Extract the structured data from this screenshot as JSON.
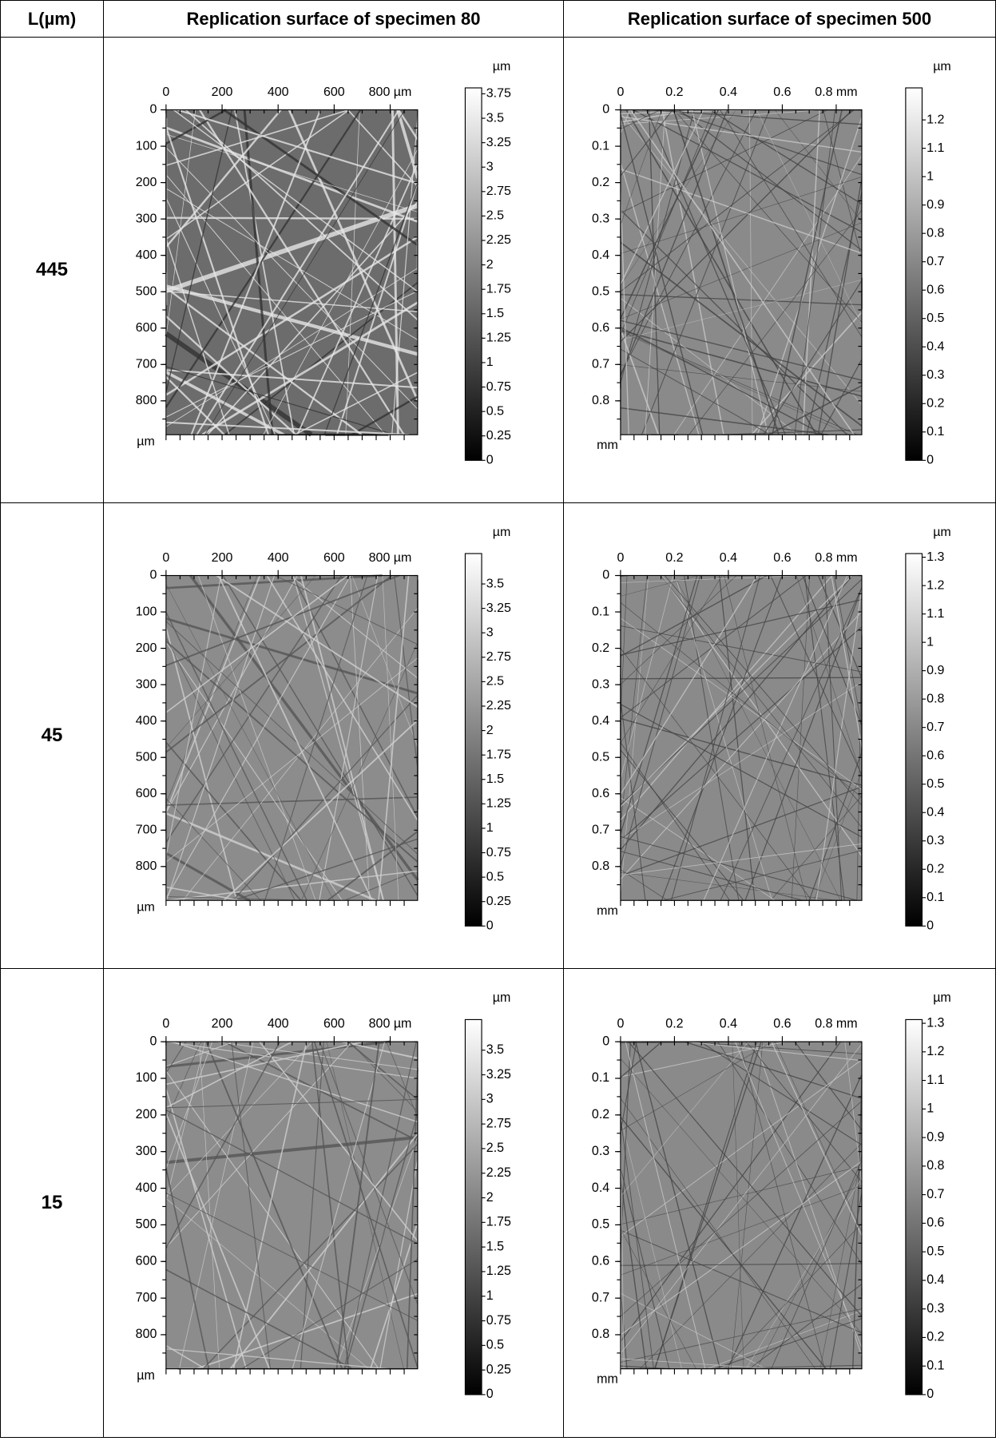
{
  "header": [
    "L(µm)",
    "Replication surface of specimen 80",
    "Replication surface of specimen 500"
  ],
  "rows": [
    {
      "label": "445",
      "panels": [
        {
          "x_ticks": [
            "0",
            "200",
            "400",
            "600",
            "800 µm"
          ],
          "y_ticks": [
            "0",
            "100",
            "200",
            "300",
            "400",
            "500",
            "600",
            "700",
            "800"
          ],
          "axis_unit": "µm",
          "colorbar_unit": "µm",
          "colorbar_ticks": [
            "3.75",
            "3.5",
            "3.25",
            "3",
            "2.75",
            "2.5",
            "2.25",
            "2",
            "1.75",
            "1.5",
            "1.25",
            "1",
            "0.75",
            "0.5",
            "0.25",
            "0"
          ]
        },
        {
          "x_ticks": [
            "0",
            "0.2",
            "0.4",
            "0.6",
            "0.8 mm"
          ],
          "y_ticks": [
            "0",
            "0.1",
            "0.2",
            "0.3",
            "0.4",
            "0.5",
            "0.6",
            "0.7",
            "0.8"
          ],
          "axis_unit": "mm",
          "colorbar_unit": "µm",
          "colorbar_ticks": [
            "1.2",
            "1.1",
            "1",
            "0.9",
            "0.8",
            "0.7",
            "0.6",
            "0.5",
            "0.4",
            "0.3",
            "0.2",
            "0.1",
            "0"
          ]
        }
      ]
    },
    {
      "label": "45",
      "panels": [
        {
          "x_ticks": [
            "0",
            "200",
            "400",
            "600",
            "800 µm"
          ],
          "y_ticks": [
            "0",
            "100",
            "200",
            "300",
            "400",
            "500",
            "600",
            "700",
            "800"
          ],
          "axis_unit": "µm",
          "colorbar_unit": "µm",
          "colorbar_ticks": [
            "3.5",
            "3.25",
            "3",
            "2.75",
            "2.5",
            "2.25",
            "2",
            "1.75",
            "1.5",
            "1.25",
            "1",
            "0.75",
            "0.5",
            "0.25",
            "0"
          ]
        },
        {
          "x_ticks": [
            "0",
            "0.2",
            "0.4",
            "0.6",
            "0.8 mm"
          ],
          "y_ticks": [
            "0",
            "0.1",
            "0.2",
            "0.3",
            "0.4",
            "0.5",
            "0.6",
            "0.7",
            "0.8"
          ],
          "axis_unit": "mm",
          "colorbar_unit": "µm",
          "colorbar_ticks": [
            "1.3",
            "1.2",
            "1.1",
            "1",
            "0.9",
            "0.8",
            "0.7",
            "0.6",
            "0.5",
            "0.4",
            "0.3",
            "0.2",
            "0.1",
            "0"
          ]
        }
      ]
    },
    {
      "label": "15",
      "panels": [
        {
          "x_ticks": [
            "0",
            "200",
            "400",
            "600",
            "800 µm"
          ],
          "y_ticks": [
            "0",
            "100",
            "200",
            "300",
            "400",
            "500",
            "600",
            "700",
            "800"
          ],
          "axis_unit": "µm",
          "colorbar_unit": "µm",
          "colorbar_ticks": [
            "3.5",
            "3.25",
            "3",
            "2.75",
            "2.5",
            "2.25",
            "2",
            "1.75",
            "1.5",
            "1.25",
            "1",
            "0.75",
            "0.5",
            "0.25",
            "0"
          ]
        },
        {
          "x_ticks": [
            "0",
            "0.2",
            "0.4",
            "0.6",
            "0.8 mm"
          ],
          "y_ticks": [
            "0",
            "0.1",
            "0.2",
            "0.3",
            "0.4",
            "0.5",
            "0.6",
            "0.7",
            "0.8"
          ],
          "axis_unit": "mm",
          "colorbar_unit": "µm",
          "colorbar_ticks": [
            "1.3",
            "1.2",
            "1.1",
            "1",
            "0.9",
            "0.8",
            "0.7",
            "0.6",
            "0.5",
            "0.4",
            "0.3",
            "0.2",
            "0.1",
            "0"
          ]
        }
      ]
    }
  ]
}
